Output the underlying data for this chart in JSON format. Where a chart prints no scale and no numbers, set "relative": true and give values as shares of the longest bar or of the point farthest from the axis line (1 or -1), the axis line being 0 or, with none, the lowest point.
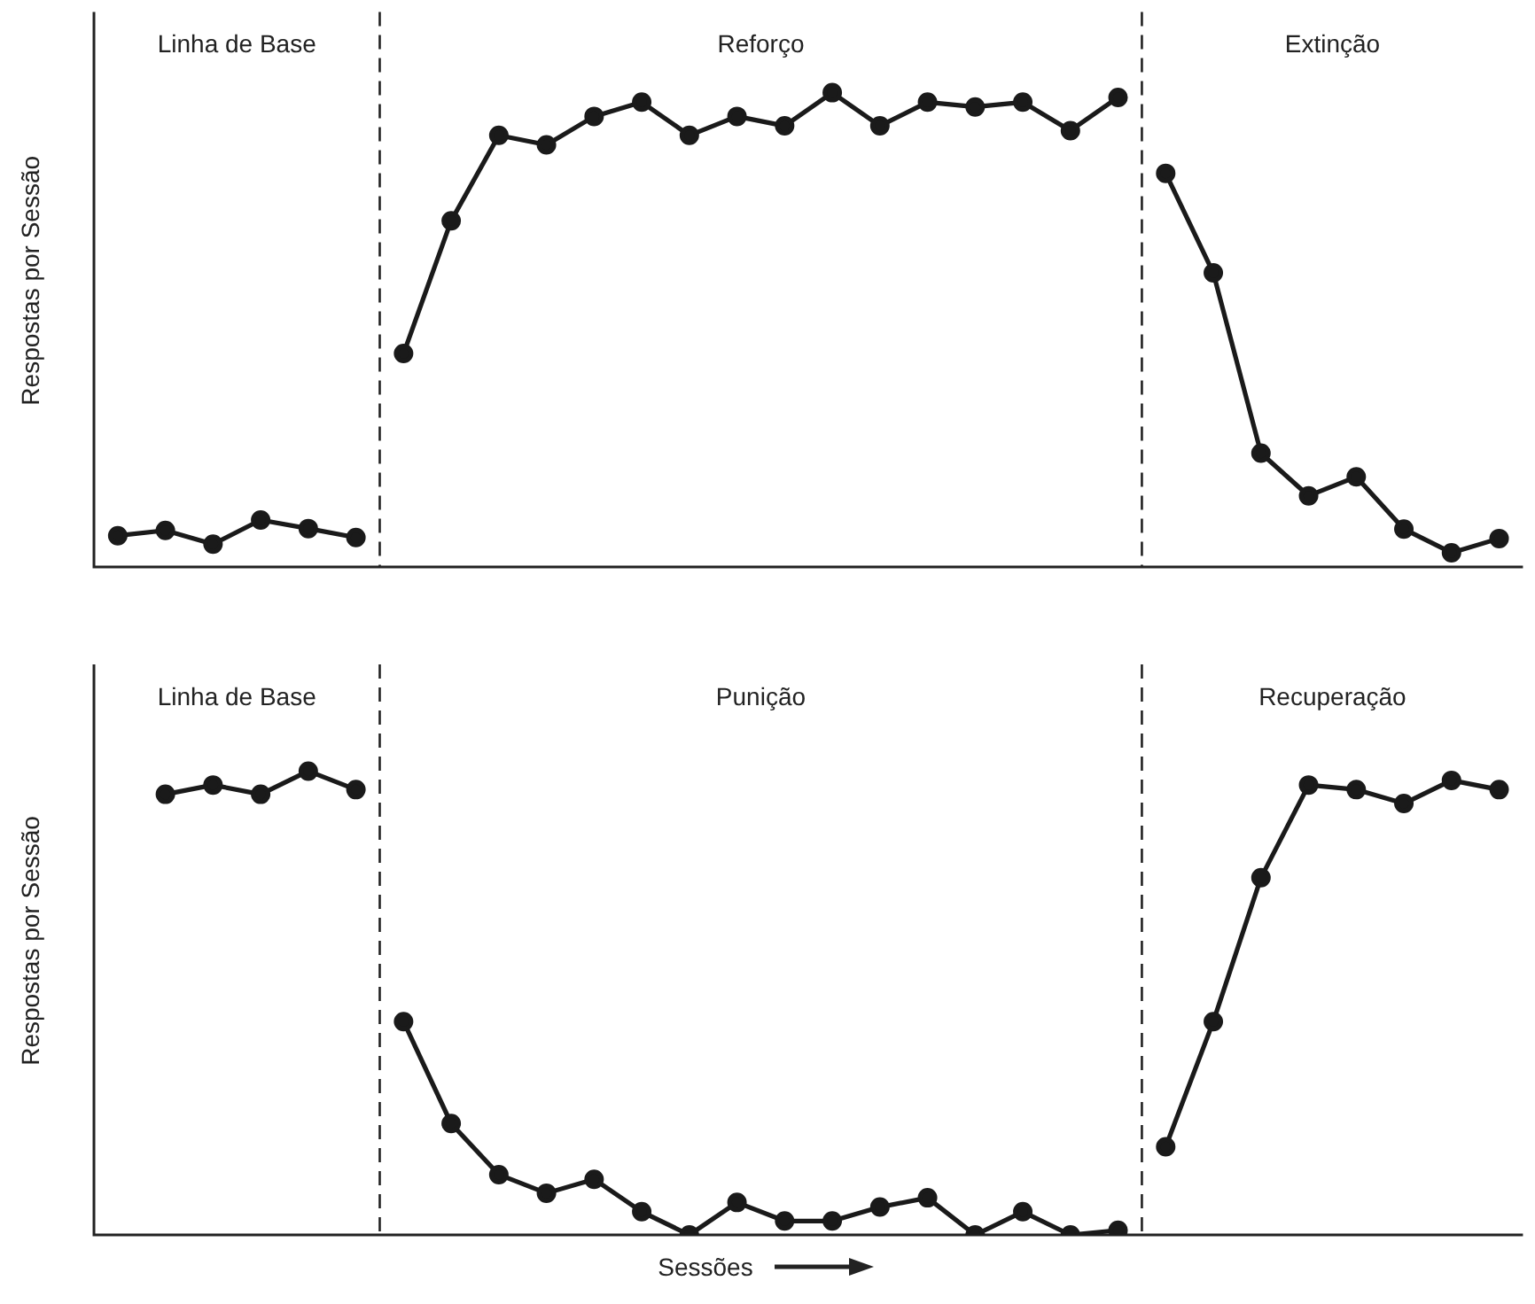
{
  "chart_data": [
    {
      "type": "line",
      "relative": true,
      "ylabel": "Respostas por Sessão",
      "categories": [
        null,
        null,
        null,
        null,
        null,
        null,
        null,
        null,
        null,
        null,
        null,
        null,
        null,
        null,
        null,
        null,
        null,
        null,
        null,
        null,
        null,
        null,
        null,
        null,
        null,
        null,
        null,
        null,
        null,
        null
      ],
      "legend": false,
      "marker": "circle",
      "line_style": "solid",
      "annotations": [
        "Linha de Base",
        "Reforço",
        "Extinção"
      ],
      "series": [
        {
          "color": "#1a1a1a",
          "values": [
            0.066,
            0.077,
            0.048,
            0.099,
            0.081,
            0.062,
            null,
            null,
            null,
            null,
            null,
            null,
            null,
            null,
            null,
            null,
            null,
            null,
            null,
            null,
            null,
            null,
            null,
            null,
            null,
            null,
            null,
            null,
            null,
            null
          ]
        },
        {
          "color": "#1a1a1a",
          "values": [
            null,
            null,
            null,
            null,
            null,
            null,
            0.45,
            0.73,
            0.91,
            0.89,
            0.95,
            0.98,
            0.91,
            0.95,
            0.93,
            1,
            0.93,
            0.98,
            0.97,
            0.98,
            0.92,
            0.99,
            null,
            null,
            null,
            null,
            null,
            null,
            null,
            null
          ]
        },
        {
          "color": "#1a1a1a",
          "values": [
            null,
            null,
            null,
            null,
            null,
            null,
            null,
            null,
            null,
            null,
            null,
            null,
            null,
            null,
            null,
            null,
            null,
            null,
            null,
            null,
            null,
            null,
            0.83,
            0.62,
            0.24,
            0.15,
            0.19,
            0.08,
            0.03,
            0.06
          ]
        }
      ]
    },
    {
      "type": "line",
      "relative": true,
      "ylabel": "Respostas por Sessão",
      "xlabel": "Sessões",
      "categories": [
        null,
        null,
        null,
        null,
        null,
        null,
        null,
        null,
        null,
        null,
        null,
        null,
        null,
        null,
        null,
        null,
        null,
        null,
        null,
        null,
        null,
        null,
        null,
        null,
        null,
        null,
        null,
        null,
        null,
        null
      ],
      "legend": false,
      "marker": "circle",
      "line_style": "solid",
      "annotations": [
        "Linha de Base",
        "Punição",
        "Recuperação"
      ],
      "series": [
        {
          "color": "#1a1a1a",
          "values": [
            null,
            0.95,
            0.97,
            0.95,
            1,
            0.96,
            null,
            null,
            null,
            null,
            null,
            null,
            null,
            null,
            null,
            null,
            null,
            null,
            null,
            null,
            null,
            null,
            null,
            null,
            null,
            null,
            null,
            null,
            null,
            null
          ]
        },
        {
          "color": "#1a1a1a",
          "values": [
            null,
            null,
            null,
            null,
            null,
            null,
            0.46,
            0.24,
            0.13,
            0.09,
            0.12,
            0.05,
            0,
            0.07,
            0.03,
            0.03,
            0.06,
            0.08,
            0,
            0.05,
            0,
            0.01,
            null,
            null,
            null,
            null,
            null,
            null,
            null,
            null
          ]
        },
        {
          "color": "#1a1a1a",
          "values": [
            null,
            null,
            null,
            null,
            null,
            null,
            null,
            null,
            null,
            null,
            null,
            null,
            null,
            null,
            null,
            null,
            null,
            null,
            null,
            null,
            null,
            null,
            0.19,
            0.46,
            0.77,
            0.97,
            0.96,
            0.93,
            0.98,
            0.96
          ]
        }
      ]
    }
  ]
}
